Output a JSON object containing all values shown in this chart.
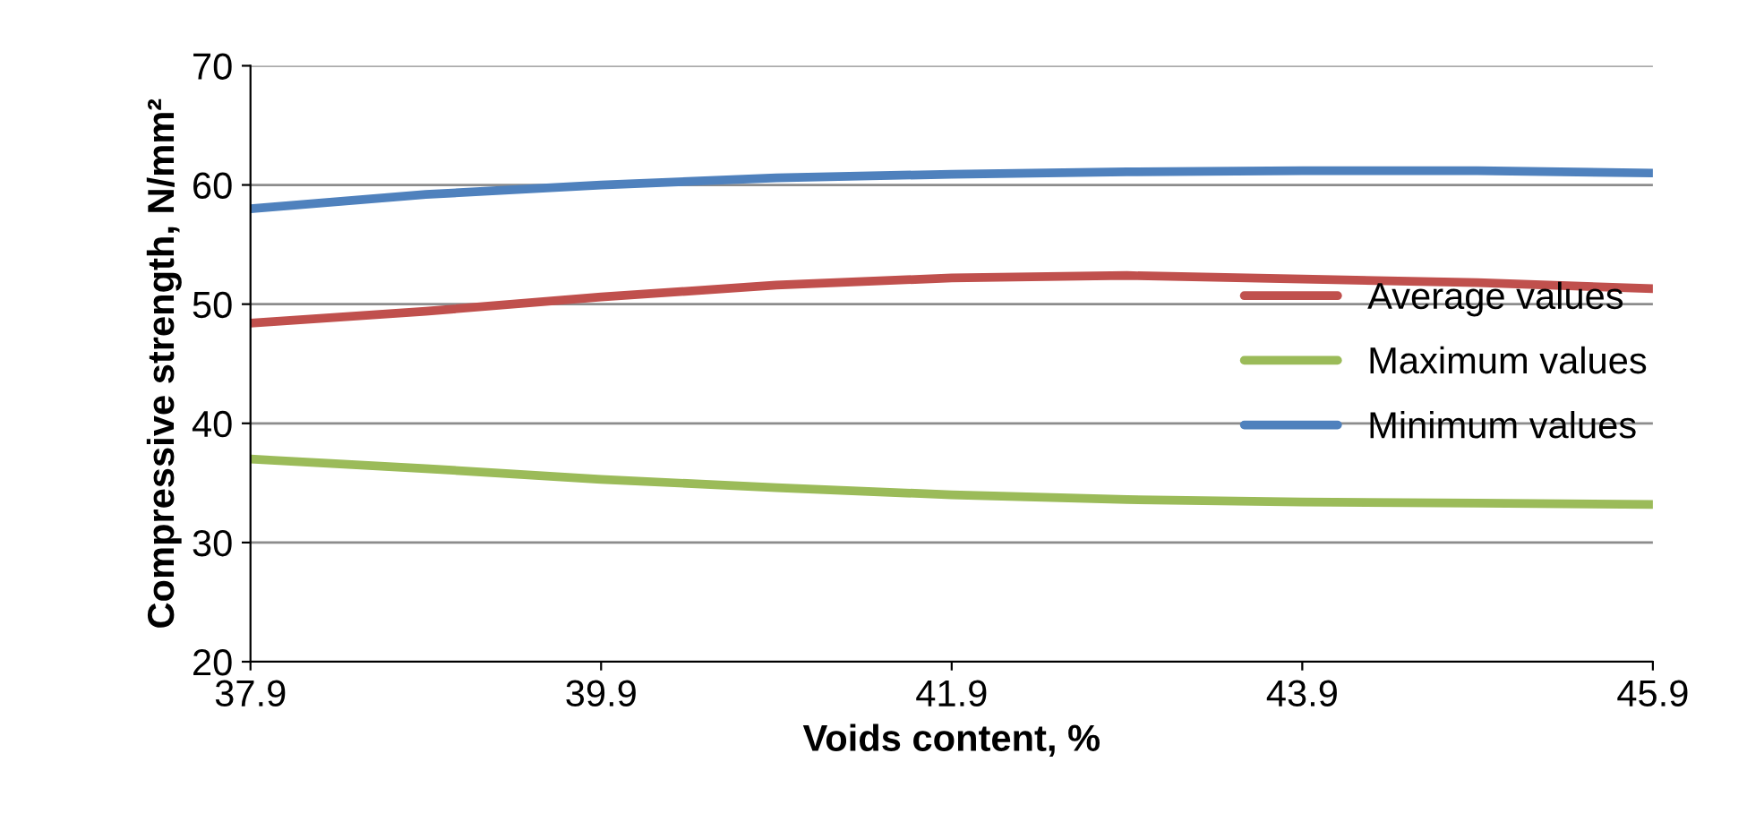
{
  "chart_data": {
    "type": "line",
    "xlabel": "Voids content, %",
    "ylabel": "Compressive strength, N/mm²",
    "x": [
      37.9,
      38.9,
      39.9,
      40.9,
      41.9,
      42.9,
      43.9,
      44.9,
      45.9
    ],
    "series": [
      {
        "name": "Average values",
        "color": "#c0504d",
        "values": [
          48.4,
          49.4,
          50.6,
          51.6,
          52.2,
          52.4,
          52.1,
          51.8,
          51.3
        ]
      },
      {
        "name": "Maximum values",
        "color": "#9bbb59",
        "values": [
          37.0,
          36.2,
          35.3,
          34.6,
          34.0,
          33.6,
          33.4,
          33.3,
          33.2
        ]
      },
      {
        "name": "Minimum values",
        "color": "#4f81bd",
        "values": [
          58.0,
          59.2,
          60.0,
          60.6,
          60.9,
          61.1,
          61.2,
          61.2,
          61.0
        ]
      }
    ],
    "xlim": [
      37.9,
      45.9
    ],
    "xticks": [
      37.9,
      39.9,
      41.9,
      43.9,
      45.9
    ],
    "ylim": [
      20,
      70
    ],
    "yticks": [
      20,
      30,
      40,
      50,
      60,
      70
    ],
    "grid": "y",
    "legend": "right",
    "marker": "none",
    "line_style": "solid"
  }
}
